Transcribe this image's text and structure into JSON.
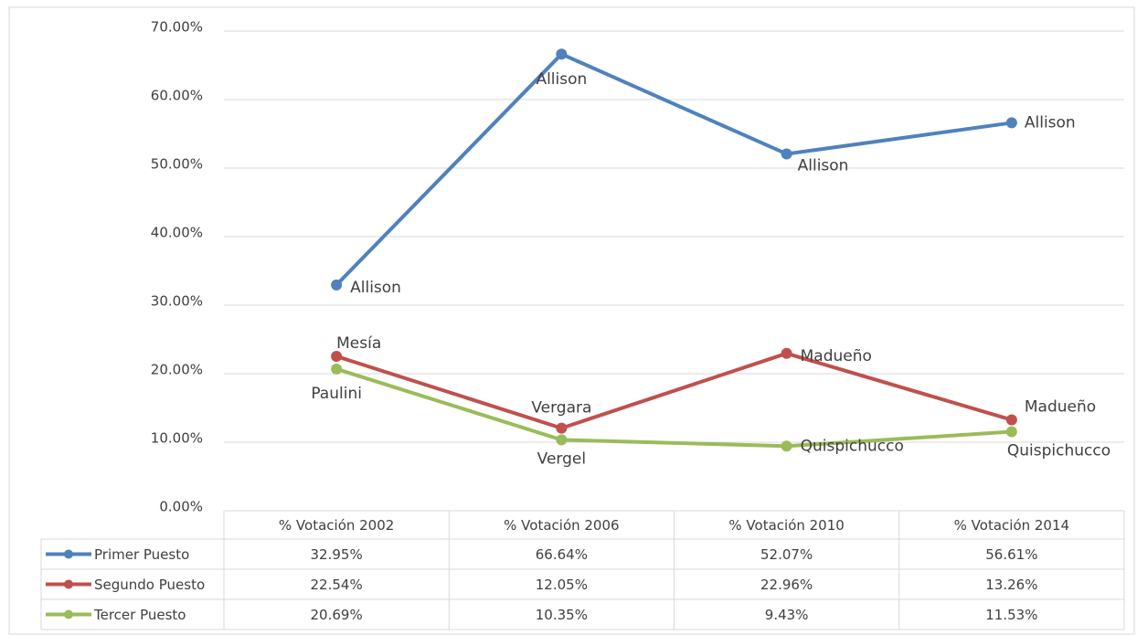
{
  "chart_data": {
    "type": "line",
    "categories": [
      "% Votación 2002",
      "% Votación 2006",
      "% Votación 2010",
      "% Votación 2014"
    ],
    "series": [
      {
        "name": "Primer Puesto",
        "color": "#4f81bd",
        "values": [
          32.95,
          66.64,
          52.07,
          56.61
        ],
        "value_labels": [
          "32.95%",
          "66.64%",
          "52.07%",
          "56.61%"
        ],
        "point_labels": [
          "Allison",
          "Allison",
          "Allison",
          "Allison"
        ]
      },
      {
        "name": "Segundo Puesto",
        "color": "#c0504d",
        "values": [
          22.54,
          12.05,
          22.96,
          13.26
        ],
        "value_labels": [
          "22.54%",
          "12.05%",
          "22.96%",
          "13.26%"
        ],
        "point_labels": [
          "Mesía",
          "Vergara",
          "Madueño",
          "Madueño"
        ]
      },
      {
        "name": "Tercer Puesto",
        "color": "#9bbb59",
        "values": [
          20.69,
          10.35,
          9.43,
          11.53
        ],
        "value_labels": [
          "20.69%",
          "10.35%",
          "9.43%",
          "11.53%"
        ],
        "point_labels": [
          "Paulini",
          "Vergel",
          "Quispichucco",
          "Quispichucco"
        ]
      }
    ],
    "ylim": [
      0,
      70
    ],
    "yticks": [
      {
        "value": 0,
        "label": "0.00%"
      },
      {
        "value": 10,
        "label": "10.00%"
      },
      {
        "value": 20,
        "label": "20.00%"
      },
      {
        "value": 30,
        "label": "30.00%"
      },
      {
        "value": 40,
        "label": "40.00%"
      },
      {
        "value": 50,
        "label": "50.00%"
      },
      {
        "value": 60,
        "label": "60.00%"
      },
      {
        "value": 70,
        "label": "70.00%"
      }
    ],
    "grid": true,
    "legend": "data-table"
  }
}
